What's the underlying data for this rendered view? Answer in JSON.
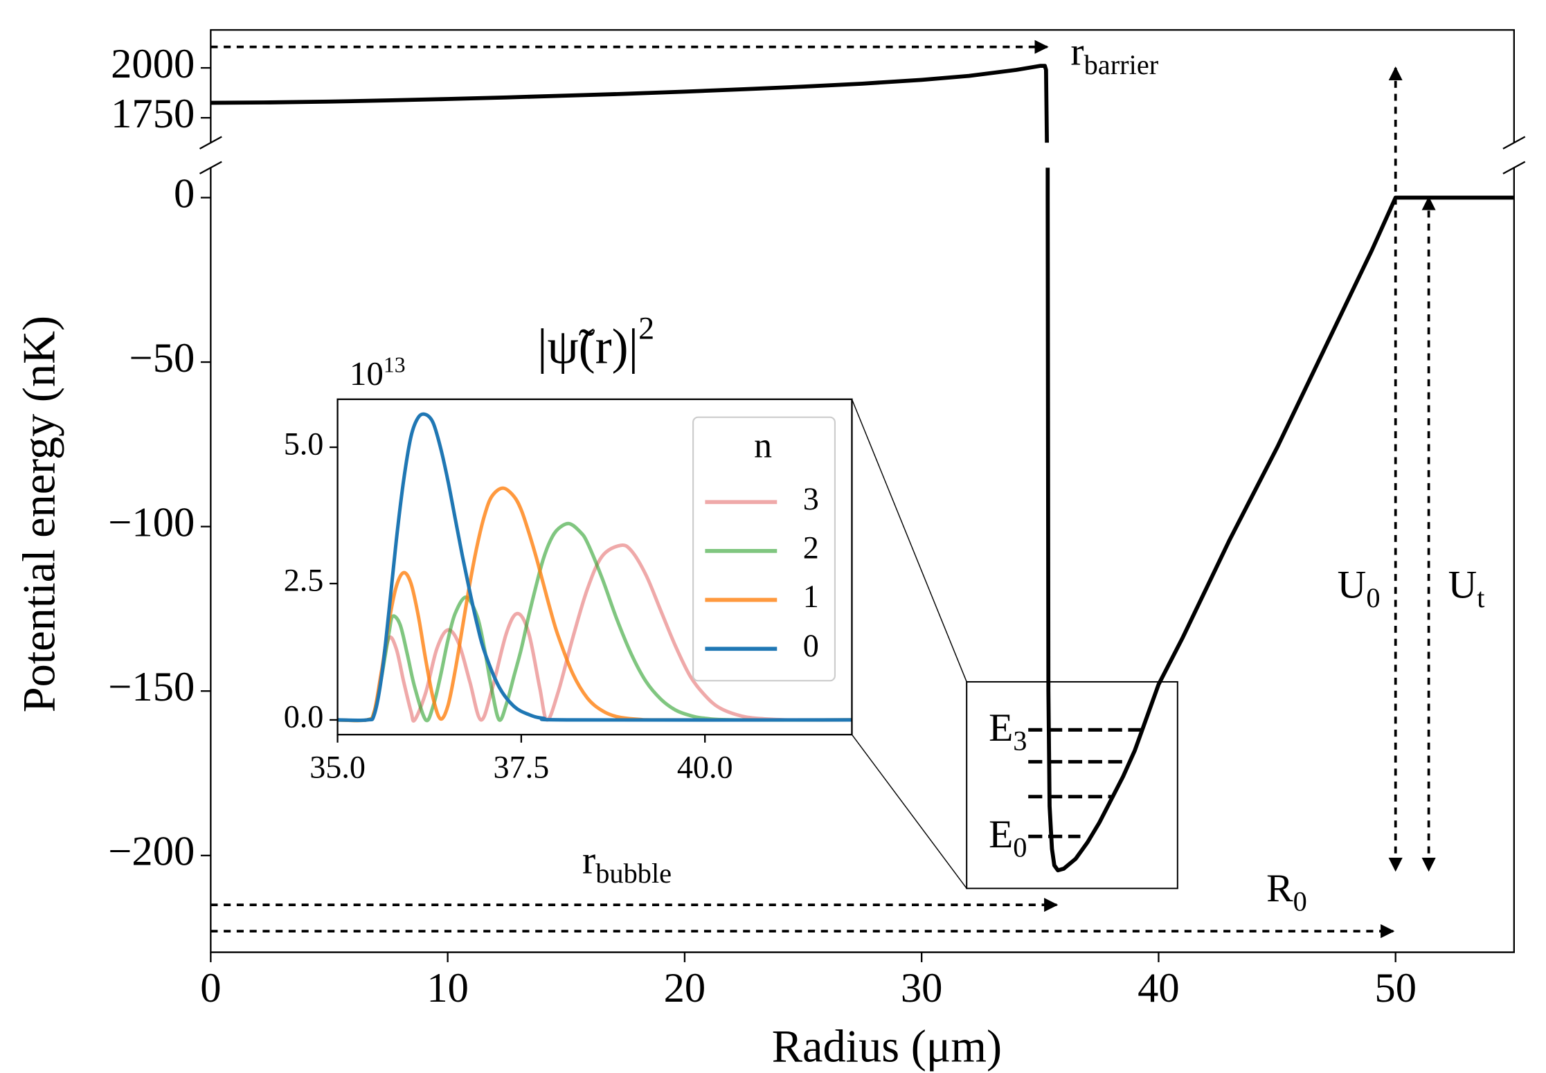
{
  "chart_data": {
    "type": "line",
    "xlabel": "Radius (μm)",
    "ylabel": "Potential energy (nK)",
    "xlim": [
      0,
      55
    ],
    "xticks": [
      0,
      10,
      20,
      30,
      40,
      50
    ],
    "panels": [
      {
        "ylim": [
          1625,
          2190
        ],
        "yticks": [
          1750,
          2000
        ]
      },
      {
        "ylim": [
          -229.4,
          9.1
        ],
        "yticks": [
          {
            "value": -200,
            "label": "−200"
          },
          {
            "value": -150,
            "label": "−150"
          },
          {
            "value": -100,
            "label": "−100"
          },
          {
            "value": -50,
            "label": "−50"
          },
          0
        ]
      }
    ],
    "series": [
      {
        "color": "#000000",
        "x": [
          0,
          2.5,
          5,
          7.5,
          10,
          12.5,
          15,
          17.5,
          20,
          22.5,
          25,
          27.5,
          30,
          32,
          34,
          35,
          35.2,
          35.25,
          35.3,
          35.32,
          35.35,
          35.4,
          35.5,
          35.6,
          35.75,
          36,
          36.5,
          37,
          37.5,
          38,
          38.5,
          39,
          39.5,
          40,
          41,
          42,
          43,
          44,
          45,
          46,
          47,
          48,
          49,
          50,
          55
        ],
        "values": [
          1825,
          1827,
          1831,
          1837,
          1844,
          1852,
          1861,
          1870,
          1881,
          1893,
          1906,
          1921,
          1940,
          1960,
          1990,
          2010,
          2010,
          1990,
          1500,
          0,
          -150,
          -185,
          -198,
          -203,
          -204.5,
          -204,
          -201,
          -196,
          -190,
          -183,
          -176,
          -168,
          -158,
          -148,
          -134,
          -119,
          -104,
          -90,
          -76,
          -61,
          -46,
          -31,
          -16,
          0,
          0
        ]
      }
    ],
    "energy_levels": {
      "values": [
        -194.2,
        -182.1,
        -171.5,
        -161.8
      ],
      "x_start": 34.5,
      "x_end": [
        36.7,
        38.0,
        38.6,
        39.4
      ],
      "labels": [
        {
          "text": "E",
          "sub": "0"
        },
        {
          "text": "E",
          "sub": "3"
        }
      ]
    },
    "annotations": [
      {
        "text": "r",
        "sub": "barrier",
        "x": [
          0,
          35.3
        ],
        "y": [
          2105,
          2105
        ],
        "panels": [
          0,
          0
        ],
        "heads": "end"
      },
      {
        "text": "r",
        "sub": "bubble",
        "x": [
          0,
          35.7
        ],
        "y": [
          -215,
          -215
        ],
        "panels": [
          1,
          1
        ],
        "heads": "end"
      },
      {
        "text": "R",
        "sub": "0",
        "x": [
          0,
          49.9
        ],
        "y": [
          -223,
          -223
        ],
        "panels": [
          1,
          1
        ],
        "heads": "end"
      },
      {
        "text": "U",
        "sub": "0",
        "x": [
          50,
          50
        ],
        "y": [
          2000,
          -204.5
        ],
        "panels": [
          0,
          1
        ],
        "heads": "both"
      },
      {
        "text": "U",
        "sub": "t",
        "x": [
          51.4,
          51.4
        ],
        "y": [
          0,
          -204.5
        ],
        "panels": [
          1,
          1
        ],
        "heads": "both"
      }
    ],
    "zoom_box": {
      "xlim": [
        31.9,
        40.8
      ],
      "ylim": [
        -210,
        -147.2
      ]
    },
    "inset": {
      "type": "line",
      "title": {
        "text": "|ψ̃(r)|",
        "sup": "2"
      },
      "offset_text": {
        "text": "10",
        "sup": "13"
      },
      "xlim": [
        35,
        42
      ],
      "ylim": [
        -0.27,
        5.88
      ],
      "xticks": [
        {
          "value": 35,
          "label": "35.0"
        },
        {
          "value": 37.5,
          "label": "37.5"
        },
        {
          "value": 40,
          "label": "40.0"
        }
      ],
      "yticks": [
        {
          "value": 0,
          "label": "0.0"
        },
        {
          "value": 2.5,
          "label": "2.5"
        },
        {
          "value": 5,
          "label": "5.0"
        }
      ],
      "legend_title": "n",
      "legend": "upper right",
      "series": [
        {
          "name": "3",
          "color": "#d62728",
          "alpha": 0.4,
          "x": [
            35.0,
            35.4,
            35.5,
            35.6,
            35.7,
            35.8,
            35.9,
            36.0,
            36.05,
            36.2,
            36.35,
            36.5,
            36.65,
            36.8,
            36.95,
            37.1,
            37.3,
            37.45,
            37.6,
            37.75,
            37.85,
            38.0,
            38.2,
            38.4,
            38.6,
            38.85,
            39.0,
            39.2,
            39.4,
            39.6,
            39.8,
            40.0,
            40.2,
            40.5,
            40.8,
            41.2,
            42.0
          ],
          "values": [
            0,
            0,
            0.15,
            0.9,
            1.5,
            1.3,
            0.7,
            0.15,
            0,
            0.5,
            1.3,
            1.65,
            1.4,
            0.7,
            0,
            0.55,
            1.6,
            1.95,
            1.6,
            0.6,
            0,
            0.5,
            1.5,
            2.4,
            3.0,
            3.2,
            3.1,
            2.65,
            2.0,
            1.35,
            0.8,
            0.45,
            0.22,
            0.07,
            0.02,
            0,
            0
          ]
        },
        {
          "name": "2",
          "color": "#2ca02c",
          "alpha": 0.6,
          "x": [
            35.0,
            35.4,
            35.5,
            35.6,
            35.7,
            35.75,
            35.85,
            35.95,
            36.05,
            36.2,
            36.3,
            36.4,
            36.5,
            36.6,
            36.75,
            36.9,
            37.0,
            37.1,
            37.2,
            37.3,
            37.4,
            37.5,
            37.6,
            37.7,
            37.8,
            37.9,
            38.0,
            38.15,
            38.3,
            38.4,
            38.6,
            38.8,
            39.0,
            39.2,
            39.4,
            39.6,
            39.8,
            40.0,
            40.4,
            42.0
          ],
          "values": [
            0,
            0,
            0.15,
            0.8,
            1.6,
            1.9,
            1.75,
            1.2,
            0.6,
            0,
            0.25,
            0.8,
            1.45,
            1.95,
            2.25,
            1.9,
            1.3,
            0.55,
            0,
            0.3,
            0.8,
            1.3,
            1.9,
            2.45,
            2.95,
            3.3,
            3.5,
            3.6,
            3.45,
            3.25,
            2.6,
            1.85,
            1.2,
            0.7,
            0.38,
            0.18,
            0.08,
            0.03,
            0,
            0
          ]
        },
        {
          "name": "1",
          "color": "#ff7f0e",
          "alpha": 0.8,
          "x": [
            35.0,
            35.4,
            35.5,
            35.6,
            35.7,
            35.8,
            35.9,
            36.0,
            36.1,
            36.2,
            36.3,
            36.4,
            36.5,
            36.6,
            36.7,
            36.8,
            36.9,
            37.0,
            37.1,
            37.25,
            37.4,
            37.5,
            37.6,
            37.7,
            37.8,
            37.9,
            38.0,
            38.2,
            38.4,
            38.6,
            38.8,
            39.1,
            39.5,
            42.0
          ],
          "values": [
            0,
            0,
            0.15,
            0.9,
            1.8,
            2.45,
            2.7,
            2.5,
            1.9,
            1.1,
            0.4,
            0.02,
            0.25,
            0.9,
            1.7,
            2.5,
            3.2,
            3.75,
            4.1,
            4.25,
            4.1,
            3.85,
            3.45,
            3.0,
            2.5,
            2.0,
            1.55,
            0.85,
            0.4,
            0.17,
            0.06,
            0.01,
            0,
            0
          ]
        },
        {
          "name": "0",
          "color": "#1f77b4",
          "alpha": 1,
          "x": [
            35.0,
            35.4,
            35.5,
            35.6,
            35.7,
            35.8,
            35.9,
            36.0,
            36.1,
            36.2,
            36.3,
            36.4,
            36.5,
            36.6,
            36.7,
            36.8,
            36.9,
            37.0,
            37.2,
            37.4,
            37.6,
            37.8,
            38.2,
            42.0
          ],
          "values": [
            0,
            0,
            0.1,
            0.8,
            2.0,
            3.3,
            4.4,
            5.2,
            5.55,
            5.6,
            5.45,
            5.0,
            4.4,
            3.7,
            3.0,
            2.35,
            1.75,
            1.25,
            0.6,
            0.25,
            0.1,
            0.03,
            0,
            0
          ]
        }
      ]
    }
  }
}
